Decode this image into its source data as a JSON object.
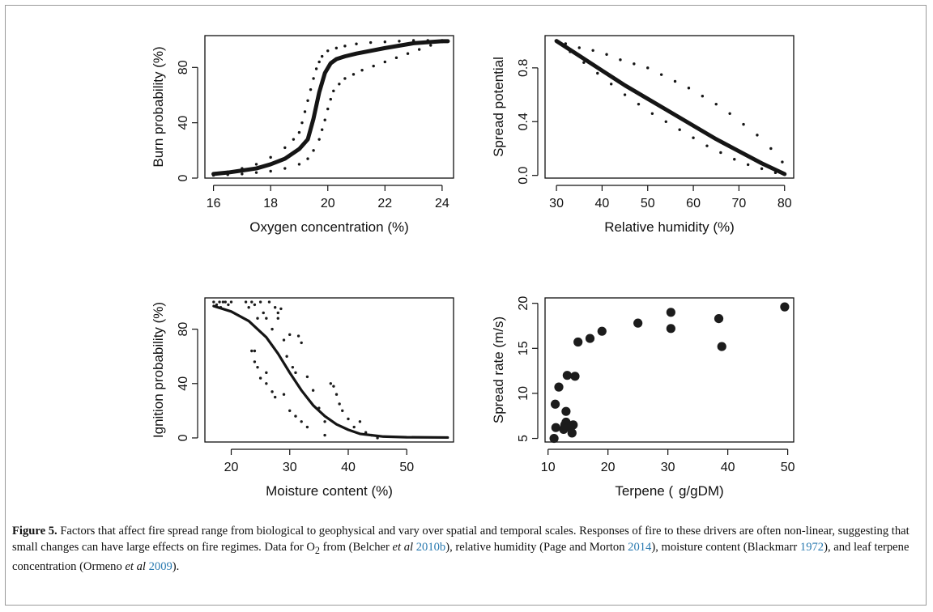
{
  "chart_data": [
    {
      "id": "oxygen",
      "type": "line",
      "xlabel": "Oxygen concentration (%)",
      "ylabel": "Burn probability (%)",
      "xlim": [
        15.7,
        24.4
      ],
      "ylim": [
        0,
        103
      ],
      "xticks": [
        "16",
        "18",
        "20",
        "22",
        "24"
      ],
      "yticks": [
        "0",
        "40",
        "80"
      ],
      "series": [
        {
          "style": "solid",
          "x": [
            16.0,
            16.5,
            17.0,
            17.5,
            18.0,
            18.5,
            19.0,
            19.3,
            19.5,
            19.7,
            19.9,
            20.1,
            20.3,
            20.6,
            21.0,
            22.0,
            23.0,
            24.0,
            24.2
          ],
          "y": [
            3,
            4,
            5.5,
            7,
            10,
            14,
            21,
            28,
            43,
            62,
            76,
            83,
            86,
            88,
            90,
            94,
            97.5,
            99,
            99
          ]
        },
        {
          "style": "dotted",
          "x": [
            16.0,
            16.5,
            17.0,
            17.5,
            18.0,
            18.5,
            18.8,
            19.0,
            19.1,
            19.2,
            19.3,
            19.4,
            19.5,
            19.6,
            19.7,
            19.8,
            20.0,
            20.3,
            20.6,
            21.0,
            21.5,
            22.0,
            22.5,
            23.0,
            23.5,
            24.0
          ],
          "y": [
            3,
            4.5,
            7,
            10,
            15,
            22,
            28,
            33,
            40,
            48,
            56,
            64,
            72,
            79,
            84,
            88,
            92,
            94,
            95.5,
            97,
            98,
            98.5,
            99,
            99.5,
            99.5,
            99.5
          ]
        },
        {
          "style": "dotted",
          "x": [
            16.0,
            16.5,
            17.0,
            17.5,
            18.0,
            18.5,
            19.0,
            19.3,
            19.5,
            19.7,
            19.8,
            19.9,
            20.0,
            20.1,
            20.2,
            20.4,
            20.6,
            20.9,
            21.2,
            21.6,
            22.0,
            22.4,
            22.8,
            23.2,
            23.6,
            24.0
          ],
          "y": [
            2,
            2.5,
            3,
            4,
            5,
            7,
            10,
            14,
            20,
            28,
            35,
            42,
            50,
            57,
            63,
            68,
            72,
            75,
            78,
            81,
            84,
            87,
            90,
            93,
            96,
            98.5
          ]
        }
      ]
    },
    {
      "id": "humidity",
      "type": "line",
      "xlabel": "Relative humidity (%)",
      "ylabel": "Spread potential",
      "xlim": [
        27.5,
        82
      ],
      "ylim": [
        -0.02,
        1.04
      ],
      "xticks": [
        "30",
        "40",
        "50",
        "60",
        "70",
        "80"
      ],
      "yticks": [
        "0.0",
        "0.4",
        "0.8"
      ],
      "series": [
        {
          "style": "solid",
          "x": [
            30,
            35,
            40,
            45,
            50,
            55,
            60,
            65,
            70,
            75,
            80
          ],
          "y": [
            1.0,
            0.89,
            0.78,
            0.67,
            0.57,
            0.47,
            0.37,
            0.27,
            0.18,
            0.09,
            0.01
          ]
        },
        {
          "style": "dotted",
          "x": [
            32,
            35,
            38,
            41,
            44,
            47,
            50,
            53,
            56,
            59,
            62,
            65,
            68,
            71,
            74,
            77,
            79.5
          ],
          "y": [
            0.98,
            0.95,
            0.93,
            0.9,
            0.86,
            0.83,
            0.8,
            0.75,
            0.7,
            0.65,
            0.59,
            0.53,
            0.46,
            0.38,
            0.3,
            0.2,
            0.1
          ]
        },
        {
          "style": "dotted",
          "x": [
            33,
            36,
            39,
            42,
            45,
            48,
            51,
            54,
            57,
            60,
            63,
            66,
            69,
            72,
            75,
            78
          ],
          "y": [
            0.92,
            0.84,
            0.76,
            0.68,
            0.6,
            0.53,
            0.46,
            0.4,
            0.34,
            0.28,
            0.22,
            0.17,
            0.12,
            0.08,
            0.05,
            0.02
          ]
        }
      ]
    },
    {
      "id": "moisture",
      "type": "scatter",
      "xlabel": "Moisture content (%)",
      "ylabel": "Ignition probability (%)",
      "xlim": [
        15.5,
        58
      ],
      "ylim": [
        -3,
        103
      ],
      "xticks": [
        "20",
        "30",
        "40",
        "50"
      ],
      "yticks": [
        "0",
        "40",
        "80"
      ],
      "curve": {
        "x": [
          17,
          20,
          23,
          26,
          28,
          30,
          32,
          34,
          36,
          38,
          40,
          42,
          44,
          46,
          50,
          57
        ],
        "y": [
          97,
          93,
          86,
          74,
          62,
          48,
          35,
          24,
          16,
          10,
          6,
          3,
          2,
          1,
          0.5,
          0.3
        ]
      },
      "points": {
        "x": [
          17,
          17.5,
          18,
          18.2,
          18.6,
          19,
          19.5,
          20,
          22.5,
          23,
          23.5,
          24,
          24.5,
          25,
          25.5,
          26,
          26.5,
          27,
          27.5,
          28,
          28,
          28.5,
          29,
          29.5,
          30,
          30.5,
          31,
          31.5,
          32,
          33,
          34,
          35,
          36,
          37,
          37.5,
          38,
          38.5,
          39,
          40,
          41,
          42,
          43,
          44,
          45,
          23.5,
          24,
          24.5,
          25,
          26,
          27,
          27.5,
          30,
          31,
          32,
          24,
          26,
          29,
          33,
          36
        ],
        "y": [
          100,
          98,
          100,
          96,
          100,
          100,
          98,
          100,
          100,
          96,
          100,
          98,
          88,
          100,
          92,
          88,
          100,
          80,
          96,
          92,
          88,
          95,
          72,
          60,
          76,
          52,
          48,
          75,
          70,
          45,
          35,
          22,
          12,
          40,
          38,
          32,
          25,
          20,
          14,
          8,
          12,
          4,
          2,
          0,
          64,
          56,
          52,
          44,
          40,
          34,
          30,
          20,
          16,
          12,
          64,
          48,
          32,
          8,
          2
        ]
      }
    },
    {
      "id": "terpene",
      "type": "scatter",
      "xlabel": "Terpene (  g/gDM)",
      "ylabel": "Spread rate (m/s)",
      "xlim": [
        9.5,
        51
      ],
      "ylim": [
        4.6,
        20.6
      ],
      "xticks": [
        "10",
        "20",
        "30",
        "40",
        "50"
      ],
      "yticks": [
        "5",
        "10",
        "15",
        "20"
      ],
      "points": {
        "x": [
          11,
          11.2,
          11.3,
          11.8,
          12.6,
          12.8,
          13.0,
          13.0,
          13.2,
          13.5,
          14.0,
          14.2,
          14.5,
          15.0,
          17.0,
          19.0,
          25.0,
          30.5,
          30.5,
          38.5,
          39.0,
          49.5
        ],
        "y": [
          5.0,
          8.8,
          6.2,
          10.7,
          6.0,
          6.5,
          6.8,
          8.0,
          12.0,
          6.3,
          5.6,
          6.5,
          11.9,
          15.7,
          16.1,
          16.9,
          17.8,
          17.2,
          19.0,
          18.3,
          15.2,
          19.6
        ]
      }
    }
  ],
  "caption": {
    "label": "Figure 5.",
    "part1": " Factors that affect fire spread range from biological to geophysical and vary over spatial and temporal scales. Responses of fire to these drivers are often non-linear, suggesting that small changes can have large effects on fire regimes. Data for O",
    "sub": "2",
    "part2": " from (Belcher ",
    "etal1": "et al",
    "ref1": "2010b",
    "part3": "), relative humidity (Page and Morton ",
    "ref2": "2014",
    "part4": "), moisture content (Blackmarr ",
    "ref3": "1972",
    "part5": "), and leaf terpene concentration (Ormeno ",
    "etal2": "et al",
    "ref4": "2009",
    "part6": ")."
  }
}
